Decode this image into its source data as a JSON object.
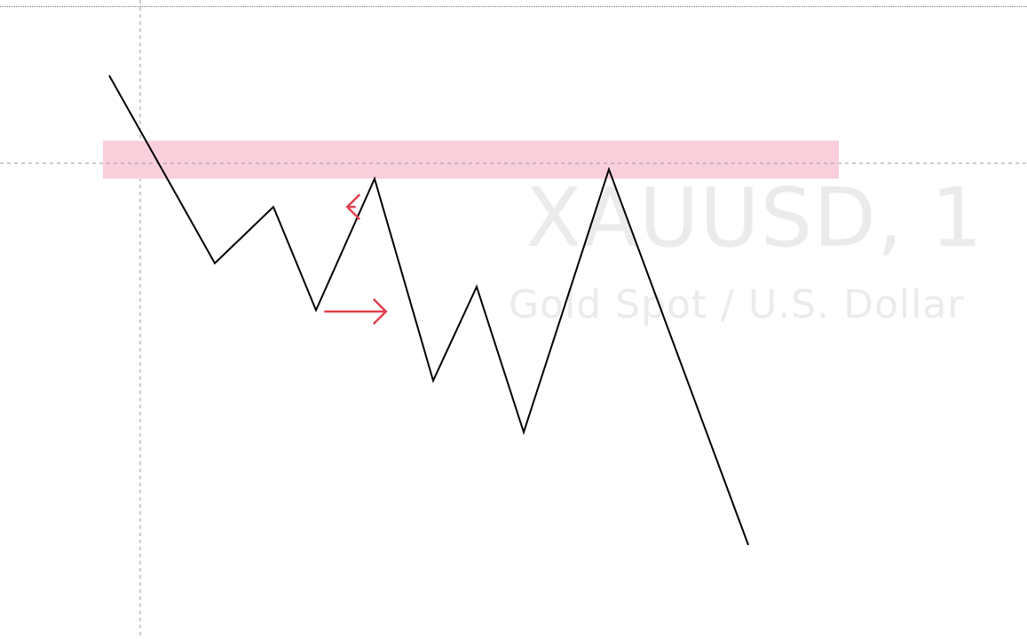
{
  "watermark": {
    "symbol": "XAUUSD, 1",
    "description": "Gold Spot / U.S. Dollar"
  },
  "colors": {
    "price_line": "#000000",
    "zone_fill": "#f9cfdc",
    "arrow": "#e0414d",
    "crosshair": "#9a9a9a",
    "watermark": "#ebebeb"
  },
  "chart_data": {
    "type": "line",
    "title": "",
    "xlabel": "",
    "ylabel": "",
    "grid": false,
    "x": [
      0,
      1,
      2,
      3,
      4,
      5,
      6,
      7,
      8,
      9,
      10
    ],
    "series": [
      {
        "values": [
          100,
          60,
          72,
          50,
          78,
          35,
          55,
          24,
          80,
          0,
          0
        ]
      }
    ],
    "zone": {
      "x_start": 0,
      "x_end": 9.3,
      "y_low": 78,
      "y_high": 86
    },
    "arrows": [
      {
        "direction": "left",
        "x_from": 3.95,
        "x_to": 3.2,
        "y": 72
      },
      {
        "direction": "right",
        "x_from": 3.05,
        "x_to": 3.8,
        "y": 50
      }
    ]
  }
}
